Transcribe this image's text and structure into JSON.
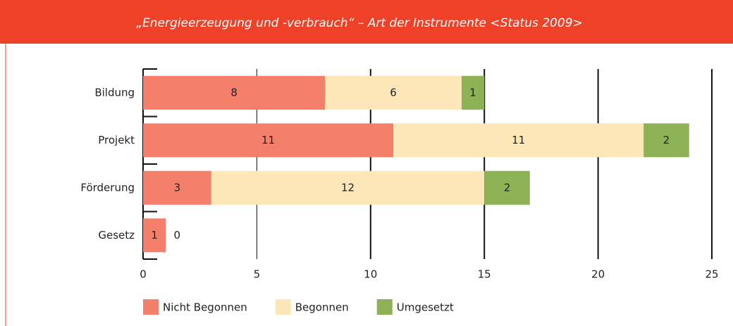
{
  "chart_data": {
    "type": "stacked-barh",
    "title": "„Energieerzeugung und -verbrauch“ – Art der Instrumente <Status 2009>",
    "categories": [
      "Bildung",
      "Projekt",
      "Förderung",
      "Gesetz"
    ],
    "series": [
      {
        "name": "Nicht Begonnen",
        "color": "#f47f6b",
        "values": [
          8,
          11,
          3,
          1
        ]
      },
      {
        "name": "Begonnen",
        "color": "#fde7b8",
        "values": [
          6,
          11,
          12,
          0
        ]
      },
      {
        "name": "Umgesetzt",
        "color": "#8db255",
        "values": [
          1,
          2,
          2,
          null
        ]
      }
    ],
    "xlim": [
      0,
      25
    ],
    "xticks": [
      0,
      5,
      10,
      15,
      20,
      25
    ],
    "grid": true,
    "legend": "bottom"
  }
}
